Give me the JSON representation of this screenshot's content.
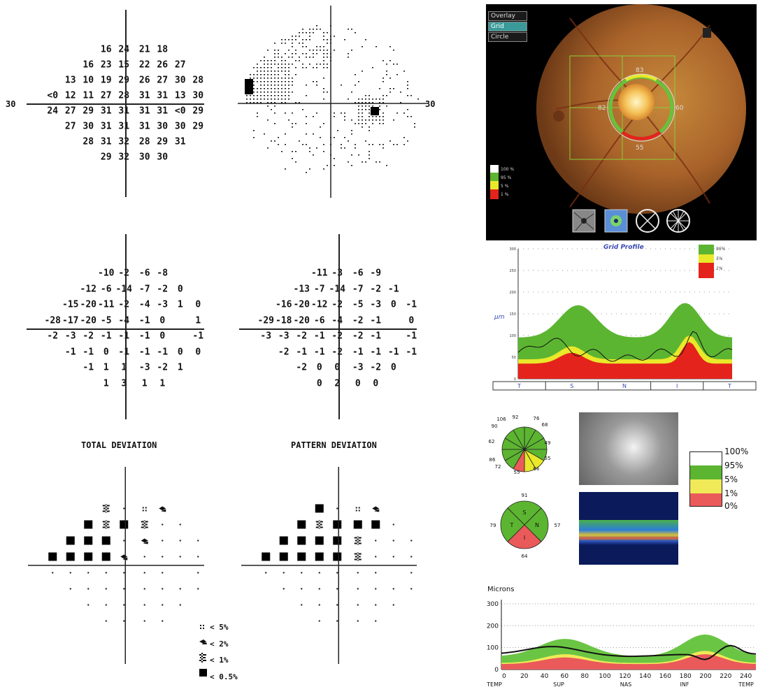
{
  "eccentricity": {
    "left": "30",
    "right": "30"
  },
  "threshold_values": [
    [
      "",
      "",
      "",
      "16",
      "24",
      "21",
      "18",
      "",
      ""
    ],
    [
      "",
      "",
      "16",
      "23",
      "15",
      "22",
      "26",
      "27",
      ""
    ],
    [
      "",
      "13",
      "10",
      "19",
      "29",
      "26",
      "27",
      "30",
      "28"
    ],
    [
      "<0",
      "12",
      "11",
      "27",
      "28",
      "31",
      "31",
      "13",
      "30"
    ],
    [
      "24",
      "27",
      "29",
      "31",
      "31",
      "31",
      "31",
      "<0",
      "29"
    ],
    [
      "",
      "27",
      "30",
      "31",
      "31",
      "31",
      "30",
      "30",
      "29"
    ],
    [
      "",
      "",
      "28",
      "31",
      "32",
      "28",
      "29",
      "31",
      ""
    ],
    [
      "",
      "",
      "",
      "29",
      "32",
      "30",
      "30",
      "",
      ""
    ]
  ],
  "total_deviation_values": [
    [
      "",
      "",
      "",
      "-10",
      "-2",
      "-6",
      "-8",
      "",
      ""
    ],
    [
      "",
      "",
      "-12",
      "-6",
      "-14",
      "-7",
      "-2",
      "0",
      ""
    ],
    [
      "",
      "-15",
      "-20",
      "-11",
      "-2",
      "-4",
      "-3",
      "1",
      "0"
    ],
    [
      "-28",
      "-17",
      "-20",
      "-5",
      "-4",
      "-1",
      "0",
      "",
      "1"
    ],
    [
      "-2",
      "-3",
      "-2",
      "-1",
      "-1",
      "-1",
      "0",
      "",
      "-1"
    ],
    [
      "",
      "-1",
      "-1",
      "0",
      "-1",
      "-1",
      "-1",
      "0",
      "0"
    ],
    [
      "",
      "",
      "-1",
      "1",
      "1",
      "-3",
      "-2",
      "1",
      ""
    ],
    [
      "",
      "",
      "",
      "1",
      "3",
      "1",
      "1",
      "",
      ""
    ]
  ],
  "pattern_deviation_values": [
    [
      "",
      "",
      "",
      "-11",
      "-3",
      "-6",
      "-9",
      "",
      ""
    ],
    [
      "",
      "",
      "-13",
      "-7",
      "-14",
      "-7",
      "-2",
      "-1",
      ""
    ],
    [
      "",
      "-16",
      "-20",
      "-12",
      "-2",
      "-5",
      "-3",
      "0",
      "-1"
    ],
    [
      "-29",
      "-18",
      "-20",
      "-6",
      "-4",
      "-2",
      "-1",
      "",
      "0"
    ],
    [
      "-3",
      "-3",
      "-2",
      "-1",
      "-2",
      "-2",
      "-1",
      "",
      "-1"
    ],
    [
      "",
      "-2",
      "-1",
      "-1",
      "-2",
      "-1",
      "-1",
      "-1",
      "-1"
    ],
    [
      "",
      "",
      "-2",
      "0",
      "0",
      "-3",
      "-2",
      "0",
      ""
    ],
    [
      "",
      "",
      "",
      "0",
      "2",
      "0",
      "0",
      "",
      ""
    ]
  ],
  "total_deviation_label": "TOTAL DEVIATION",
  "pattern_deviation_label": "PATTERN DEVIATION",
  "total_prob_symbols": [
    [
      "",
      "",
      "",
      "s2",
      "d",
      "d5",
      "s3",
      "",
      ""
    ],
    [
      "",
      "",
      "b",
      "s2",
      "b",
      "s2",
      "d",
      "d",
      ""
    ],
    [
      "",
      "b",
      "b",
      "b",
      "d",
      "s3",
      "d",
      "d",
      "d"
    ],
    [
      "b",
      "b",
      "b",
      "b",
      "s3",
      "d",
      "d",
      "d",
      "d"
    ],
    [
      "d",
      "d",
      "d",
      "d",
      "d",
      "d",
      "d",
      "",
      "d"
    ],
    [
      "",
      "d",
      "d",
      "d",
      "d",
      "d",
      "d",
      "d",
      "d"
    ],
    [
      "",
      "",
      "d",
      "d",
      "d",
      "d",
      "d",
      "d",
      ""
    ],
    [
      "",
      "",
      "",
      "d",
      "d",
      "d",
      "d",
      "",
      ""
    ]
  ],
  "pattern_prob_symbols": [
    [
      "",
      "",
      "",
      "b",
      "d",
      "d5",
      "s3",
      "",
      ""
    ],
    [
      "",
      "",
      "b",
      "s2",
      "b",
      "b",
      "b",
      "d",
      ""
    ],
    [
      "",
      "b",
      "b",
      "b",
      "b",
      "s2",
      "d",
      "d",
      "d"
    ],
    [
      "b",
      "b",
      "b",
      "b",
      "b",
      "s2",
      "d",
      "d",
      "d"
    ],
    [
      "d",
      "d",
      "d",
      "d",
      "d",
      "d",
      "d",
      "",
      "d"
    ],
    [
      "",
      "d",
      "d",
      "d",
      "d",
      "d",
      "d",
      "d",
      "d"
    ],
    [
      "",
      "",
      "d",
      "d",
      "d",
      "d",
      "d",
      "d",
      ""
    ],
    [
      "",
      "",
      "",
      "d",
      "d",
      "d",
      "d",
      "",
      ""
    ]
  ],
  "prob_legend": [
    "< 5%",
    "< 2%",
    "< 1%",
    "< 0.5%"
  ],
  "fundus": {
    "buttons": [
      "Overlay",
      "Grid",
      "Circle"
    ],
    "active_button": "Grid",
    "values": {
      "top": "83",
      "left": "82",
      "right": "60",
      "bottom": "55"
    },
    "legend": [
      "100 %",
      "95 %",
      "5 %",
      "1 %"
    ],
    "colors": {
      "white": "#ffffff",
      "green": "#5cb531",
      "yellow": "#e9e82a",
      "red": "#e4241c"
    }
  },
  "grid_profile": {
    "title": "Grid Profile",
    "ylabel": "μm",
    "yticks": [
      "0",
      "50",
      "100",
      "150",
      "200",
      "250",
      "300"
    ],
    "xcats": [
      "T",
      "S",
      "N",
      "I",
      "T"
    ],
    "legend": [
      "95%",
      "5%",
      "1%"
    ]
  },
  "sector_charts": {
    "clock": {
      "values": [
        "106",
        "92",
        "76",
        "90",
        "68",
        "62",
        "49",
        "86",
        "55",
        "72",
        "55",
        "66"
      ]
    },
    "quadrant": {
      "labels": [
        "S",
        "T",
        "N",
        "I"
      ],
      "values": {
        "S": "91",
        "T": "79",
        "N": "57",
        "I": "64"
      }
    }
  },
  "percent_legend": [
    "100%",
    "95%",
    "5%",
    "1%",
    "0%"
  ],
  "tsnit_chart": {
    "ylabel": "Microns",
    "yticks": [
      "0",
      "100",
      "200",
      "300"
    ],
    "xticks": [
      "0",
      "20",
      "40",
      "60",
      "80",
      "100",
      "120",
      "140",
      "160",
      "180",
      "200",
      "220",
      "240"
    ],
    "xcats": [
      "TEMP",
      "SUP",
      "NAS",
      "INF",
      "TEMP"
    ]
  }
}
